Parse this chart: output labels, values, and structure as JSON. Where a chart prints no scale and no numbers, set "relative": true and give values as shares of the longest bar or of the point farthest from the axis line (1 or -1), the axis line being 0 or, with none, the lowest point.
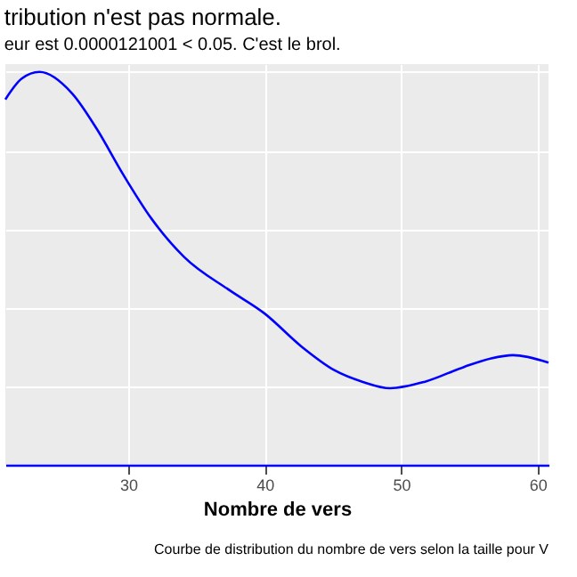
{
  "chart_data": {
    "type": "line",
    "title": "tribution n'est pas normale.",
    "subtitle": "eur est  0.0000121001  < 0.05. C'est le brol.",
    "xlabel": "Nombre de vers",
    "annotations": [
      "Courbe de distribution du nombre de vers selon la taille pour  V"
    ],
    "relative": true,
    "x": [
      21.0,
      22.2,
      23.5,
      25.9,
      27.7,
      29.6,
      31.7,
      34.1,
      37.4,
      40.0,
      42.7,
      45.1,
      47.2,
      49.2,
      51.7,
      54.6,
      56.6,
      58.2,
      60.8
    ],
    "series": [
      {
        "color": "#0000ff",
        "values": [
          0.93,
          0.983,
          1.0,
          0.945,
          0.855,
          0.741,
          0.627,
          0.529,
          0.445,
          0.385,
          0.301,
          0.241,
          0.211,
          0.195,
          0.211,
          0.249,
          0.271,
          0.279,
          0.26
        ]
      }
    ],
    "xlim": [
      21.0,
      60.8
    ],
    "xticks": [
      30,
      40,
      50,
      60
    ],
    "grid": true,
    "tick_labels": "x",
    "marker": "none",
    "line_style": "solid"
  }
}
